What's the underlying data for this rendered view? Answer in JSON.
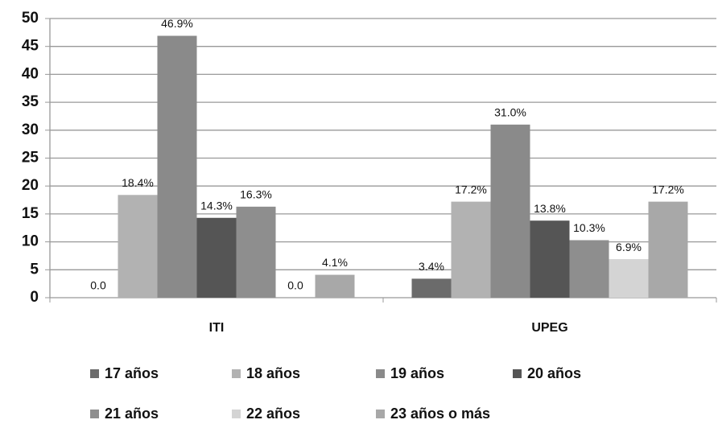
{
  "chart_data": {
    "type": "bar",
    "categories": [
      "ITI",
      "UPEG"
    ],
    "series": [
      {
        "name": "17 años",
        "color": "#6b6b6b",
        "values": [
          0,
          3.4
        ],
        "value_labels": [
          "0.0",
          "3.4%"
        ]
      },
      {
        "name": "18 años",
        "color": "#b2b2b2",
        "values": [
          18.4,
          17.2
        ],
        "value_labels": [
          "18.4%",
          "17.2%"
        ]
      },
      {
        "name": "19 años",
        "color": "#8a8a8a",
        "values": [
          46.9,
          31.0
        ],
        "value_labels": [
          "46.9%",
          "31.0%"
        ]
      },
      {
        "name": "20 años",
        "color": "#555555",
        "values": [
          14.3,
          13.8
        ],
        "value_labels": [
          "14.3%",
          "13.8%"
        ]
      },
      {
        "name": "21 años",
        "color": "#8e8e8e",
        "values": [
          16.3,
          10.3
        ],
        "value_labels": [
          "16.3%",
          "10.3%"
        ]
      },
      {
        "name": "22 años",
        "color": "#d4d4d4",
        "values": [
          0,
          6.9
        ],
        "value_labels": [
          "0.0",
          "6.9%"
        ]
      },
      {
        "name": "23 años o más",
        "color": "#a8a8a8",
        "values": [
          4.1,
          17.2
        ],
        "value_labels": [
          "4.1%",
          "17.2%"
        ]
      }
    ],
    "ylim": [
      0,
      50
    ],
    "yticks": [
      0,
      5,
      10,
      15,
      20,
      25,
      30,
      35,
      40,
      45,
      50
    ],
    "grid": true
  }
}
